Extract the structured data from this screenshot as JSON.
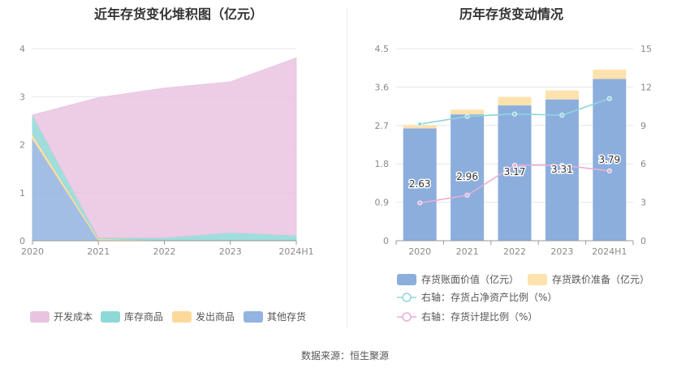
{
  "source_text": "数据来源：恒生聚源",
  "colors": {
    "dev_cost": "#e9c4e0",
    "stock_goods": "#8fd8d8",
    "issued_goods": "#fcd99a",
    "other_inventory": "#93b3e0",
    "book_value": "#8caedd",
    "impairment": "#fde2ad",
    "ratio_net_assets": "#8ed6db",
    "provision_ratio": "#e7aed8"
  },
  "chart_data": [
    {
      "type": "area",
      "stacked": true,
      "title": "近年存货变化堆积图（亿元）",
      "categories": [
        "2020",
        "2021",
        "2022",
        "2023",
        "2024H1"
      ],
      "ylim": [
        0,
        4
      ],
      "yticks": [
        0,
        1,
        2,
        3,
        4
      ],
      "grid": true,
      "legend_position": "bottom",
      "series": [
        {
          "name": "其他存货",
          "values": [
            2.12,
            0.0,
            0.0,
            0.0,
            0.0
          ]
        },
        {
          "name": "发出商品",
          "values": [
            0.1,
            0.04,
            0.01,
            0.01,
            0.01
          ]
        },
        {
          "name": "库存商品",
          "values": [
            0.4,
            0.02,
            0.05,
            0.16,
            0.1
          ]
        },
        {
          "name": "开发成本",
          "values": [
            0.0,
            2.92,
            3.12,
            3.14,
            3.7
          ]
        }
      ]
    },
    {
      "type": "bar",
      "stacked": true,
      "title": "历年存货变动情况",
      "categories": [
        "2020",
        "2021",
        "2022",
        "2023",
        "2024H1"
      ],
      "ylim": [
        0,
        4.5
      ],
      "yticks": [
        "0",
        "0.9",
        "1.8",
        "2.7",
        "3.6",
        "4.5"
      ],
      "y2lim": [
        0,
        15
      ],
      "y2ticks": [
        "0",
        "3",
        "6",
        "9",
        "12",
        "15"
      ],
      "grid": true,
      "legend_position": "bottom",
      "series": [
        {
          "name": "存货账面价值（亿元）",
          "values": [
            2.63,
            2.96,
            3.17,
            3.31,
            3.79
          ],
          "labels": [
            "2.63",
            "2.96",
            "3.17",
            "3.31",
            "3.79"
          ]
        },
        {
          "name": "存货跌价准备（亿元）",
          "values": [
            0.08,
            0.11,
            0.2,
            0.21,
            0.22
          ]
        }
      ],
      "lines": [
        {
          "name": "右轴：存货占净资产比例（%）",
          "axis": "right",
          "values": [
            9.1,
            9.7,
            9.9,
            9.8,
            11.1
          ]
        },
        {
          "name": "右轴：存货计提比例（%）",
          "axis": "right",
          "values": [
            2.95,
            3.55,
            5.9,
            5.9,
            5.45
          ]
        }
      ]
    }
  ]
}
